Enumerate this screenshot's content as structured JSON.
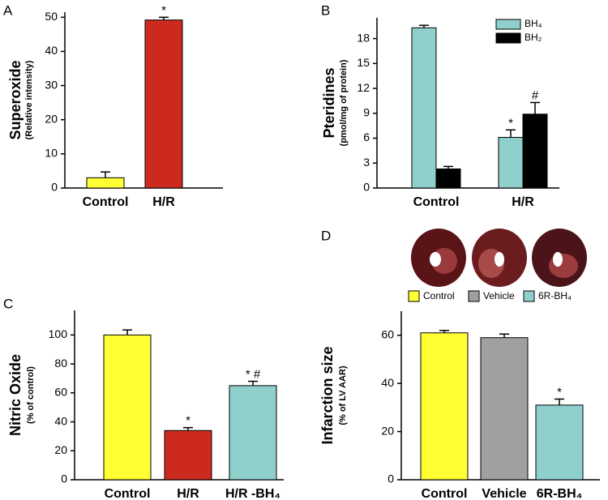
{
  "chart_data": [
    {
      "type": "bar",
      "label": "A",
      "ylabel": "Superoxide",
      "ylabel_sub": "(Relative intensity)",
      "categories": [
        "Control",
        "H/R"
      ],
      "values": [
        3,
        49.2
      ],
      "errors": [
        1.7,
        0.8
      ],
      "colors": [
        "#ffff33",
        "#cc2a1e"
      ],
      "annotations": [
        null,
        "*"
      ],
      "ylim": [
        0,
        51.5
      ],
      "yticks": [
        0,
        10,
        20,
        30,
        40,
        50
      ]
    },
    {
      "type": "grouped-bar",
      "label": "B",
      "ylabel": "Pteridines",
      "ylabel_sub": "(pmol/mg of protein)",
      "categories": [
        "Control",
        "H/R"
      ],
      "series": [
        {
          "name": "BH₄",
          "color": "#8fcfcc",
          "values": [
            19.3,
            6.1
          ],
          "errors": [
            0.3,
            0.9
          ],
          "annotations": [
            null,
            "*"
          ]
        },
        {
          "name": "BH₂",
          "color": "#000000",
          "values": [
            2.3,
            8.9
          ],
          "errors": [
            0.3,
            1.4
          ],
          "annotations": [
            null,
            "#"
          ]
        }
      ],
      "legend": "upper right",
      "ylim": [
        0,
        20.5
      ],
      "yticks": [
        0,
        3,
        6,
        9,
        12,
        15,
        18
      ]
    },
    {
      "type": "bar",
      "label": "C",
      "ylabel": "Nitric Oxide",
      "ylabel_sub": "(% of control)",
      "categories": [
        "Control",
        "H/R",
        "H/R -BH₄"
      ],
      "values": [
        100,
        34,
        65
      ],
      "errors": [
        3.5,
        2,
        3
      ],
      "colors": [
        "#ffff33",
        "#cc2a1e",
        "#8fcfcc"
      ],
      "annotations": [
        null,
        "*",
        "* #"
      ],
      "ylim": [
        0,
        117
      ],
      "yticks": [
        0,
        20,
        40,
        60,
        80,
        100
      ]
    },
    {
      "type": "bar",
      "label": "D",
      "ylabel": "Infarction size",
      "ylabel_sub": "(% of LV AAR)",
      "categories": [
        "Control",
        "Vehicle",
        "6R-BH₄"
      ],
      "values": [
        61,
        59,
        31
      ],
      "errors": [
        1,
        1.5,
        2.5
      ],
      "colors": [
        "#ffff33",
        "#a0a0a0",
        "#8fcfcc"
      ],
      "annotations": [
        null,
        null,
        "*"
      ],
      "legend": "top",
      "ylim": [
        0,
        70
      ],
      "yticks": [
        0,
        20,
        40,
        60
      ]
    }
  ]
}
